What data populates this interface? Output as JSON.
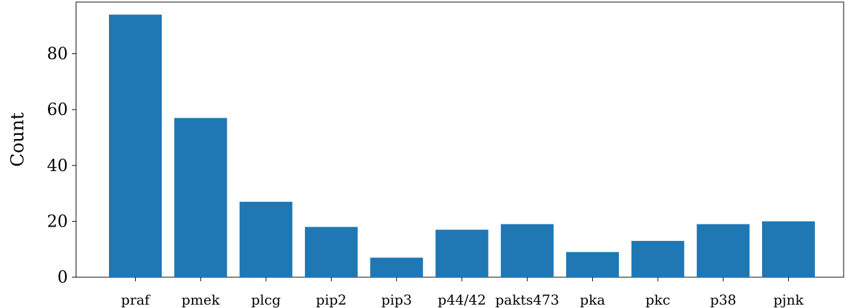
{
  "chart_data": {
    "type": "bar",
    "title": "",
    "xlabel": "",
    "ylabel": "Count",
    "categories": [
      "praf",
      "pmek",
      "plcg",
      "pip2",
      "pip3",
      "p44/42",
      "pakts473",
      "pka",
      "pkc",
      "p38",
      "pjnk"
    ],
    "values": [
      94,
      57,
      27,
      18,
      7,
      17,
      19,
      9,
      13,
      19,
      20
    ],
    "ylim": [
      0,
      98.5
    ],
    "yticks": [
      0,
      20,
      40,
      60,
      80
    ],
    "grid": false,
    "bar_color": "#1f77b4"
  }
}
